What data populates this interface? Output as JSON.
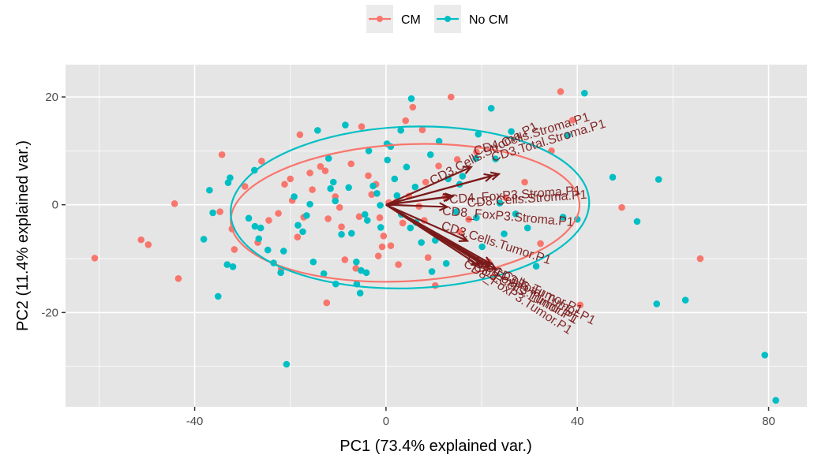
{
  "chart_data": {
    "type": "scatter",
    "subtype": "pca-biplot",
    "title": "",
    "xlabel": "PC1 (73.4% explained var.)",
    "ylabel": "PC2 (11.4% explained var.)",
    "xlim": [
      -67,
      88
    ],
    "ylim": [
      -37.5,
      26
    ],
    "x_ticks": [
      -40,
      0,
      40,
      80
    ],
    "y_ticks": [
      -20,
      0,
      20
    ],
    "x_tick_labels": [
      "-40",
      "0",
      "40",
      "80"
    ],
    "y_tick_labels": [
      "-20",
      "0",
      "20"
    ],
    "grid": true,
    "legend": {
      "position": "top",
      "entries": [
        {
          "name": "CM",
          "color": "#F8766D"
        },
        {
          "name": "No CM",
          "color": "#00BFC4"
        }
      ]
    },
    "series": [
      {
        "name": "CM",
        "color": "#F8766D",
        "points": [
          [
            -60.9,
            -9.9
          ],
          [
            -51.2,
            -6.5
          ],
          [
            -49.7,
            -7.4
          ],
          [
            -44.2,
            0.2
          ],
          [
            -43.4,
            -13.7
          ],
          [
            -34.3,
            9.3
          ],
          [
            -34.7,
            -1.3
          ],
          [
            -32.2,
            -4.5
          ],
          [
            -31.7,
            -8.3
          ],
          [
            -29.5,
            3.4
          ],
          [
            -26.0,
            8.1
          ],
          [
            -24.5,
            -2.9
          ],
          [
            -21.9,
            -11.9
          ],
          [
            -21.2,
            3.8
          ],
          [
            -20.0,
            4.8
          ],
          [
            -19.6,
            0.8
          ],
          [
            -18.5,
            -6.0
          ],
          [
            -17.2,
            -2.3
          ],
          [
            -15.9,
            5.9
          ],
          [
            -15.4,
            2.8
          ],
          [
            -13.7,
            7.1
          ],
          [
            -12.7,
            6.3
          ],
          [
            -12.1,
            -2.6
          ],
          [
            -10.6,
            1.5
          ],
          [
            -9.3,
            -4.1
          ],
          [
            -8.6,
            -10.2
          ],
          [
            -6.3,
            -11.8
          ],
          [
            -3.7,
            5.4
          ],
          [
            -2.1,
            3.8
          ],
          [
            -1.6,
            -9.5
          ],
          [
            -0.8,
            -7.8
          ],
          [
            1.0,
            -7.6
          ],
          [
            -12.4,
            -18.2
          ],
          [
            -5.1,
            14.5
          ],
          [
            -5.6,
            -2.2
          ],
          [
            -3.0,
            1.9
          ],
          [
            -1.3,
            -2.4
          ],
          [
            0.6,
            0.4
          ],
          [
            2.1,
            0.5
          ],
          [
            4.8,
            1.6
          ],
          [
            6.9,
            -0.3
          ],
          [
            8.3,
            4.2
          ],
          [
            5.6,
            18.1
          ],
          [
            4.1,
            15.6
          ],
          [
            7.6,
            13.9
          ],
          [
            8.0,
            -2.9
          ],
          [
            8.8,
            -9.8
          ],
          [
            13.6,
            20.0
          ],
          [
            12.4,
            1.5
          ],
          [
            14.9,
            8.4
          ],
          [
            17.3,
            -2.7
          ],
          [
            18.9,
            9.8
          ],
          [
            21.4,
            -10.6
          ],
          [
            22.4,
            -13.4
          ],
          [
            25.1,
            1.3
          ],
          [
            29.0,
            4.2
          ],
          [
            32.3,
            -7.2
          ],
          [
            36.5,
            21.0
          ],
          [
            34.6,
            10.0
          ],
          [
            39.0,
            15.7
          ],
          [
            40.6,
            -18.6
          ],
          [
            49.3,
            -0.5
          ],
          [
            65.7,
            -10.0
          ],
          [
            -0.5,
            -5.8
          ],
          [
            3.5,
            -3.4
          ],
          [
            -7.3,
            7.6
          ],
          [
            -9.7,
            -0.5
          ],
          [
            10.3,
            -15.0
          ],
          [
            15.4,
            -5.0
          ],
          [
            -26.8,
            -7.0
          ],
          [
            -18.0,
            13.0
          ],
          [
            -22.5,
            -1.6
          ],
          [
            2.6,
            -11.1
          ],
          [
            11.0,
            7.2
          ]
        ]
      },
      {
        "name": "No CM",
        "color": "#00BFC4",
        "points": [
          [
            -38.1,
            -6.4
          ],
          [
            -36.9,
            2.7
          ],
          [
            -36.2,
            -1.5
          ],
          [
            -35.1,
            -17.0
          ],
          [
            -33.2,
            -11.1
          ],
          [
            -32.0,
            -11.5
          ],
          [
            -33.0,
            4.1
          ],
          [
            -32.6,
            5.0
          ],
          [
            -28.7,
            -2.5
          ],
          [
            -27.4,
            -4.0
          ],
          [
            -26.2,
            -4.3
          ],
          [
            -26.6,
            -6.3
          ],
          [
            -24.7,
            -8.4
          ],
          [
            -23.5,
            -10.8
          ],
          [
            -22.0,
            -12.6
          ],
          [
            -20.8,
            -29.6
          ],
          [
            -21.4,
            -8.6
          ],
          [
            -19.2,
            1.5
          ],
          [
            -18.4,
            -3.8
          ],
          [
            -17.4,
            -5.0
          ],
          [
            -16.6,
            -2.0
          ],
          [
            -15.9,
            0.1
          ],
          [
            -15.2,
            -10.6
          ],
          [
            -13.0,
            -12.8
          ],
          [
            -10.5,
            -14.7
          ],
          [
            -12.0,
            8.6
          ],
          [
            -11.0,
            4.2
          ],
          [
            -11.6,
            3.0
          ],
          [
            -10.6,
            0.7
          ],
          [
            -9.3,
            -5.5
          ],
          [
            -7.8,
            3.2
          ],
          [
            -7.2,
            -5.3
          ],
          [
            -6.2,
            -10.6
          ],
          [
            -5.2,
            -12.2
          ],
          [
            -4.1,
            -12.6
          ],
          [
            -4.4,
            -1.8
          ],
          [
            -3.9,
            -2.9
          ],
          [
            -6.1,
            -14.7
          ],
          [
            -5.4,
            -16.4
          ],
          [
            -2.7,
            3.5
          ],
          [
            -1.9,
            2.1
          ],
          [
            -1.2,
            -0.1
          ],
          [
            0.2,
            11.3
          ],
          [
            1.0,
            10.8
          ],
          [
            0.3,
            8.3
          ],
          [
            1.8,
            4.8
          ],
          [
            2.3,
            1.7
          ],
          [
            4.3,
            7.0
          ],
          [
            6.1,
            3.3
          ],
          [
            5.1,
            -4.3
          ],
          [
            6.3,
            -3.3
          ],
          [
            7.4,
            -7.0
          ],
          [
            9.6,
            -12.4
          ],
          [
            12.6,
            -10.9
          ],
          [
            5.3,
            19.7
          ],
          [
            22.0,
            17.9
          ],
          [
            19.3,
            13.1
          ],
          [
            18.8,
            8.6
          ],
          [
            16.0,
            5.3
          ],
          [
            15.4,
            3.8
          ],
          [
            13.0,
            4.8
          ],
          [
            14.7,
            -1.3
          ],
          [
            18.9,
            -2.4
          ],
          [
            20.1,
            -7.8
          ],
          [
            22.9,
            8.5
          ],
          [
            24.7,
            -5.4
          ],
          [
            27.1,
            -1.7
          ],
          [
            29.6,
            -4.3
          ],
          [
            31.4,
            -11.4
          ],
          [
            37.0,
            -2.3
          ],
          [
            40.0,
            -2.7
          ],
          [
            41.5,
            20.7
          ],
          [
            38.0,
            12.9
          ],
          [
            47.4,
            5.1
          ],
          [
            57.0,
            4.7
          ],
          [
            52.5,
            -3.1
          ],
          [
            56.6,
            -18.4
          ],
          [
            62.6,
            -17.7
          ],
          [
            79.2,
            -27.9
          ],
          [
            81.5,
            -36.3
          ],
          [
            -1.1,
            -4.2
          ],
          [
            3.2,
            -1.8
          ],
          [
            9.3,
            9.3
          ],
          [
            11.1,
            11.8
          ],
          [
            -8.5,
            14.8
          ],
          [
            -14.3,
            13.8
          ],
          [
            -27.5,
            6.4
          ],
          [
            3.1,
            13.8
          ],
          [
            10.3,
            -6.6
          ],
          [
            23.8,
            0.3
          ],
          [
            -3.6,
            10.0
          ],
          [
            26.2,
            13.6
          ]
        ]
      }
    ],
    "ellipses": [
      {
        "group": "CM",
        "color": "#F8766D",
        "center": [
          4.0,
          -1.5
        ],
        "rx": 36.5,
        "ry": 12.7,
        "rotation_deg": -3
      },
      {
        "group": "No CM",
        "color": "#00BFC4",
        "center": [
          5.0,
          -0.5
        ],
        "rx": 37.5,
        "ry": 15.0,
        "rotation_deg": -2
      }
    ],
    "loadings": {
      "color": "#7B1A1A",
      "origin": [
        0,
        0
      ],
      "arrows": [
        {
          "label": "CD3.Cells.Stroma.P1",
          "end": [
            17.8,
            7.0
          ],
          "label_pos": [
            20.5,
            9.4
          ],
          "label_angle": -28
        },
        {
          "label": "CD4.Cells.Stroma.P1",
          "end": [
            23.6,
            5.7
          ],
          "label_pos": [
            30.5,
            13.0
          ],
          "label_angle": -17
        },
        {
          "label": "CD3.Total.Stroma.P1",
          "end": [
            22.2,
            5.4
          ],
          "label_pos": [
            34.0,
            11.8
          ],
          "label_angle": -17
        },
        {
          "label": "CD4_FoxP3.Stroma.P1",
          "end": [
            14.0,
            1.6
          ],
          "label_pos": [
            27.0,
            1.7
          ],
          "label_angle": -4
        },
        {
          "label": "CD8.Cells.Stroma.P1",
          "end": [
            13.6,
            1.5
          ],
          "label_pos": [
            29.5,
            1.0
          ],
          "label_angle": -4
        },
        {
          "label": "CD8_FoxP3.Stroma.P1",
          "end": [
            12.8,
            -0.4
          ],
          "label_pos": [
            25.5,
            -2.3
          ],
          "label_angle": 5
        },
        {
          "label": "CD3.Cells.Tumor.P1",
          "end": [
            17.0,
            -6.7
          ],
          "label_pos": [
            23.0,
            -7.2
          ],
          "label_angle": 18
        },
        {
          "label": "CD4.Cells.Tumor.P1",
          "end": [
            22.0,
            -11.0
          ],
          "label_pos": [
            30.0,
            -15.3
          ],
          "label_angle": 25
        },
        {
          "label": "CD3.Total.Tumor.P1",
          "end": [
            23.0,
            -12.0
          ],
          "label_pos": [
            33.0,
            -17.0
          ],
          "label_angle": 27
        },
        {
          "label": "CD8.Cells.Tumor.P1",
          "end": [
            21.5,
            -11.5
          ],
          "label_pos": [
            29.0,
            -16.4
          ],
          "label_angle": 28
        },
        {
          "label": "CD4_FoxP3.Tumor.P1",
          "end": [
            20.0,
            -11.0
          ],
          "label_pos": [
            28.5,
            -15.8
          ],
          "label_angle": 30
        },
        {
          "label": "CD8_FoxP3.Tumor.P1",
          "end": [
            19.5,
            -11.3
          ],
          "label_pos": [
            27.5,
            -17.2
          ],
          "label_angle": 33
        }
      ]
    }
  }
}
